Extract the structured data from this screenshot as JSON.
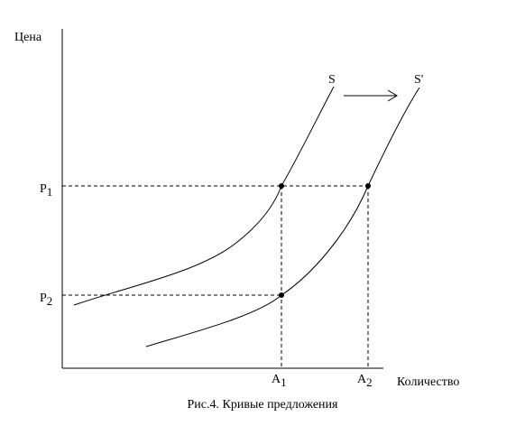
{
  "axes": {
    "y_label": "Цена",
    "x_label": "Количество"
  },
  "curves": {
    "supply_label": "S",
    "shifted_supply_label": "S'"
  },
  "price_ticks": {
    "p1_letter": "P",
    "p1_sub": "1",
    "p2_letter": "P",
    "p2_sub": "2"
  },
  "quantity_ticks": {
    "a1_letter": "A",
    "a1_sub": "1",
    "a2_letter": "A",
    "a2_sub": "2"
  },
  "caption": "Рис.4. Кривые предложения",
  "colors": {
    "line": "#000000",
    "background": "#ffffff"
  }
}
